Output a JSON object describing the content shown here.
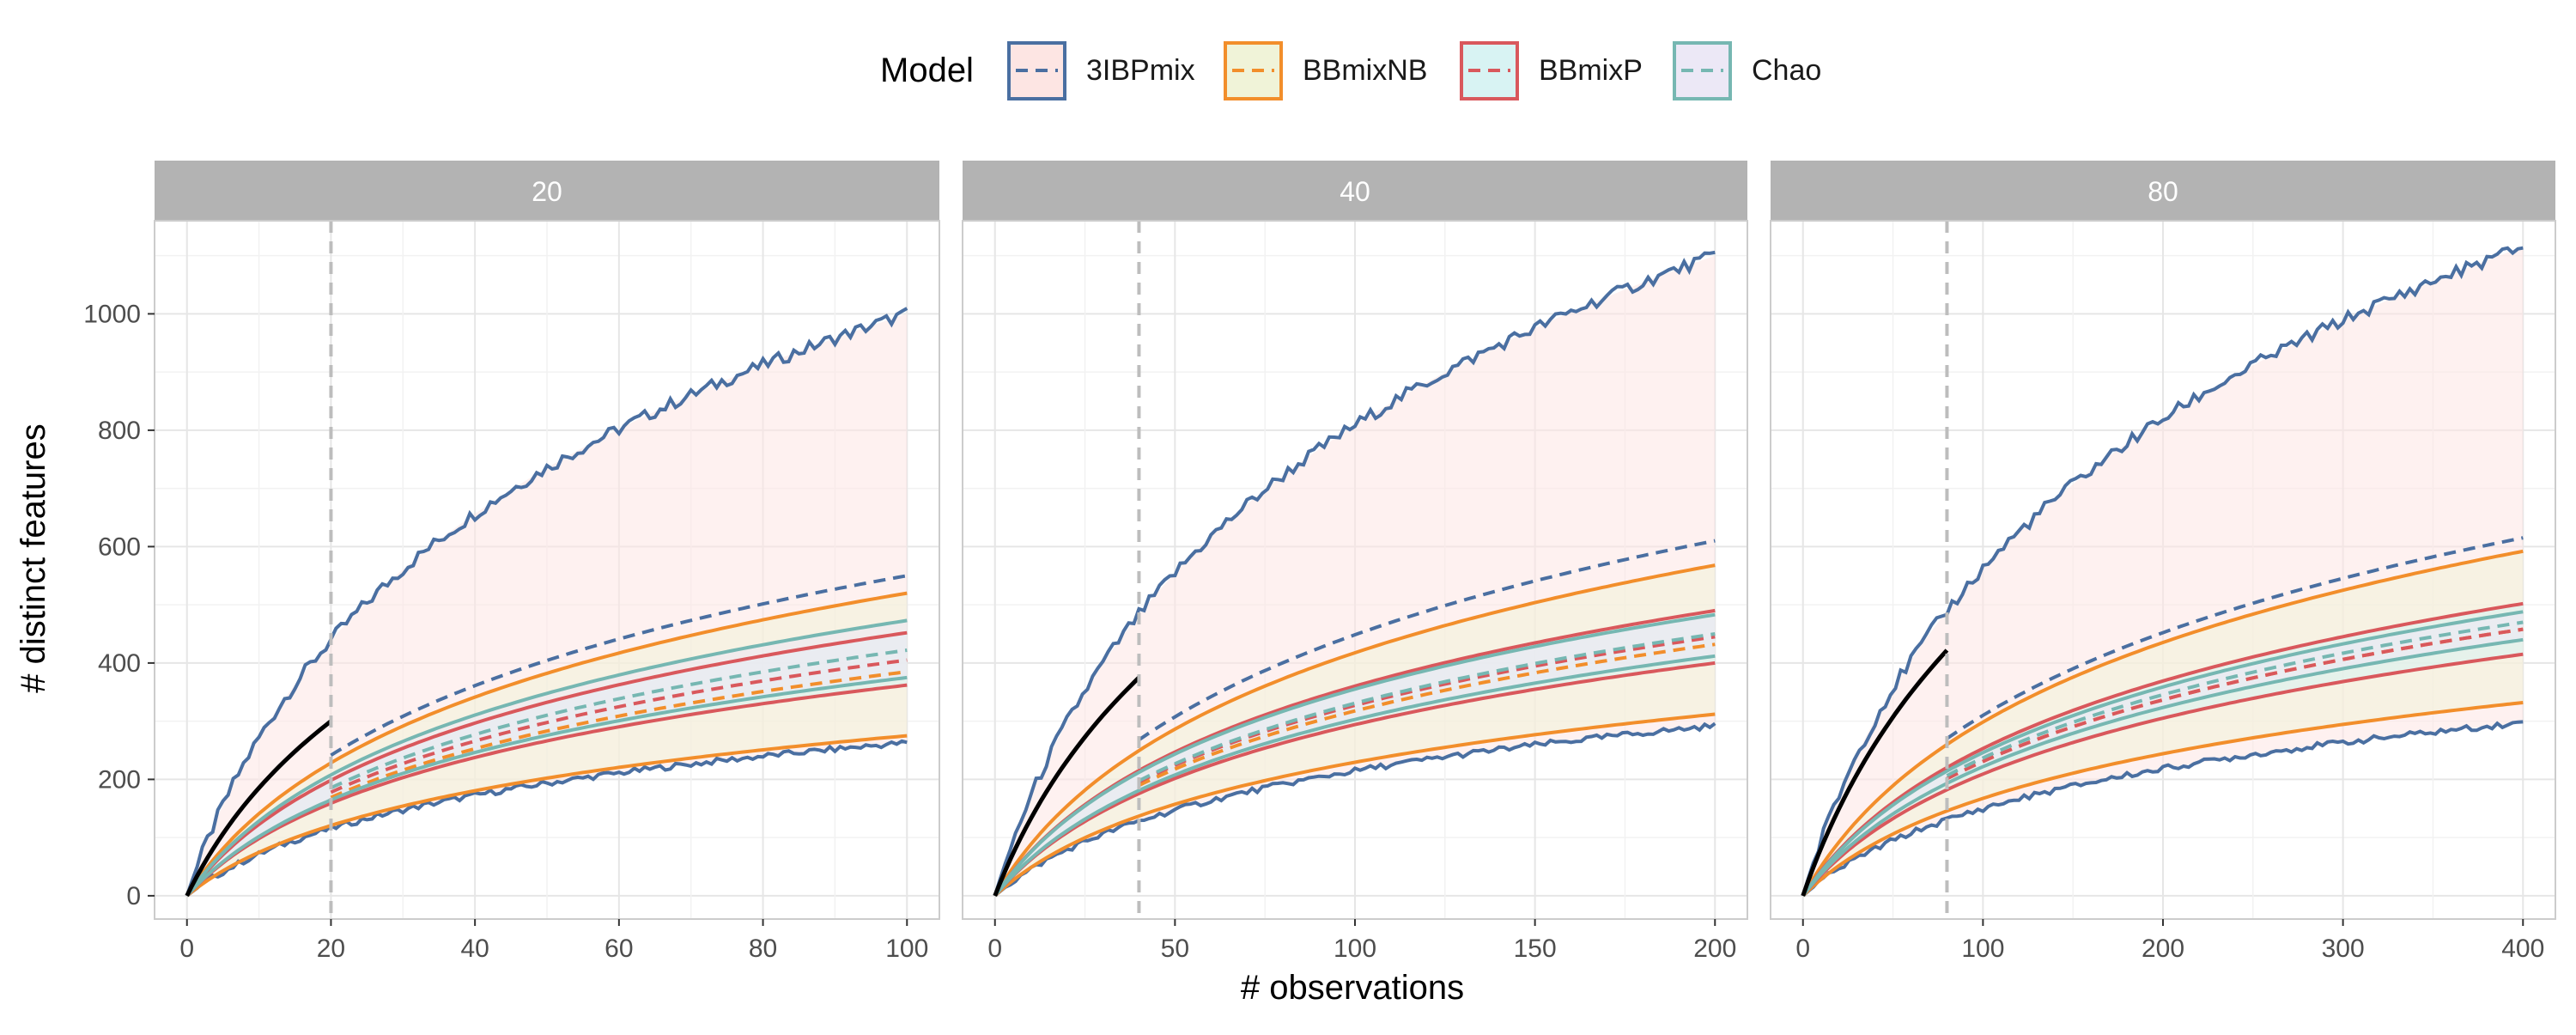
{
  "legend": {
    "title": "Model",
    "items": [
      {
        "name": "3IBPmix",
        "line": "#4a6fa1",
        "fill": "#fde5e3"
      },
      {
        "name": "BBmixNB",
        "line": "#f28e2b",
        "fill": "#f0f3d8"
      },
      {
        "name": "BBmixP",
        "line": "#d9585c",
        "fill": "#d8f3f3"
      },
      {
        "name": "Chao",
        "line": "#76b7b2",
        "fill": "#ece8f6"
      }
    ]
  },
  "axes": {
    "xlabel": "# observations",
    "ylabel": "# distinct features"
  },
  "colors": {
    "observed": "#000000",
    "strip": "#b3b3b3",
    "vline": "#bdbdbd",
    "panel_border": "#cccccc"
  },
  "chart_data": {
    "type": "line",
    "y_ticks": [
      0,
      200,
      400,
      600,
      800,
      1000
    ],
    "ylim": [
      -40,
      1160
    ],
    "grid": true,
    "legend_position": "top",
    "panels": [
      {
        "strip": "20",
        "xmax": 100,
        "x_ticks": [
          0,
          20,
          40,
          60,
          80,
          100
        ],
        "x_tick_labels": [
          "0",
          "20",
          "40",
          "60",
          "80",
          "100"
        ],
        "training_size": 20,
        "observed_end": 300,
        "series": {
          "3IBPmix": {
            "upper_end": 1000,
            "mean_end": 550,
            "lower_end": 263
          },
          "BBmixNB": {
            "upper_end": 520,
            "mean_end": 385,
            "lower_end": 275
          },
          "BBmixP": {
            "upper_end": 452,
            "mean_end": 405,
            "lower_end": 362
          },
          "Chao": {
            "upper_end": 473,
            "mean_end": 422,
            "lower_end": 375
          }
        }
      },
      {
        "strip": "40",
        "xmax": 200,
        "x_ticks": [
          0,
          50,
          100,
          150,
          200
        ],
        "x_tick_labels": [
          "0",
          "50",
          "100",
          "150",
          "200"
        ],
        "training_size": 40,
        "observed_end": 375,
        "series": {
          "3IBPmix": {
            "upper_end": 1100,
            "mean_end": 610,
            "lower_end": 292
          },
          "BBmixNB": {
            "upper_end": 568,
            "mean_end": 432,
            "lower_end": 312
          },
          "BBmixP": {
            "upper_end": 490,
            "mean_end": 445,
            "lower_end": 400
          },
          "Chao": {
            "upper_end": 483,
            "mean_end": 450,
            "lower_end": 412
          }
        }
      },
      {
        "strip": "80",
        "xmax": 400,
        "x_ticks": [
          0,
          100,
          200,
          300,
          400
        ],
        "x_tick_labels": [
          "0",
          "100",
          "200",
          "300",
          "400"
        ],
        "training_size": 80,
        "observed_end": 422,
        "series": {
          "3IBPmix": {
            "upper_end": 1115,
            "mean_end": 615,
            "lower_end": 297
          },
          "BBmixNB": {
            "upper_end": 592,
            "mean_end": 458,
            "lower_end": 332
          },
          "BBmixP": {
            "upper_end": 502,
            "mean_end": 458,
            "lower_end": 415
          },
          "Chao": {
            "upper_end": 488,
            "mean_end": 470,
            "lower_end": 440
          }
        }
      }
    ]
  }
}
